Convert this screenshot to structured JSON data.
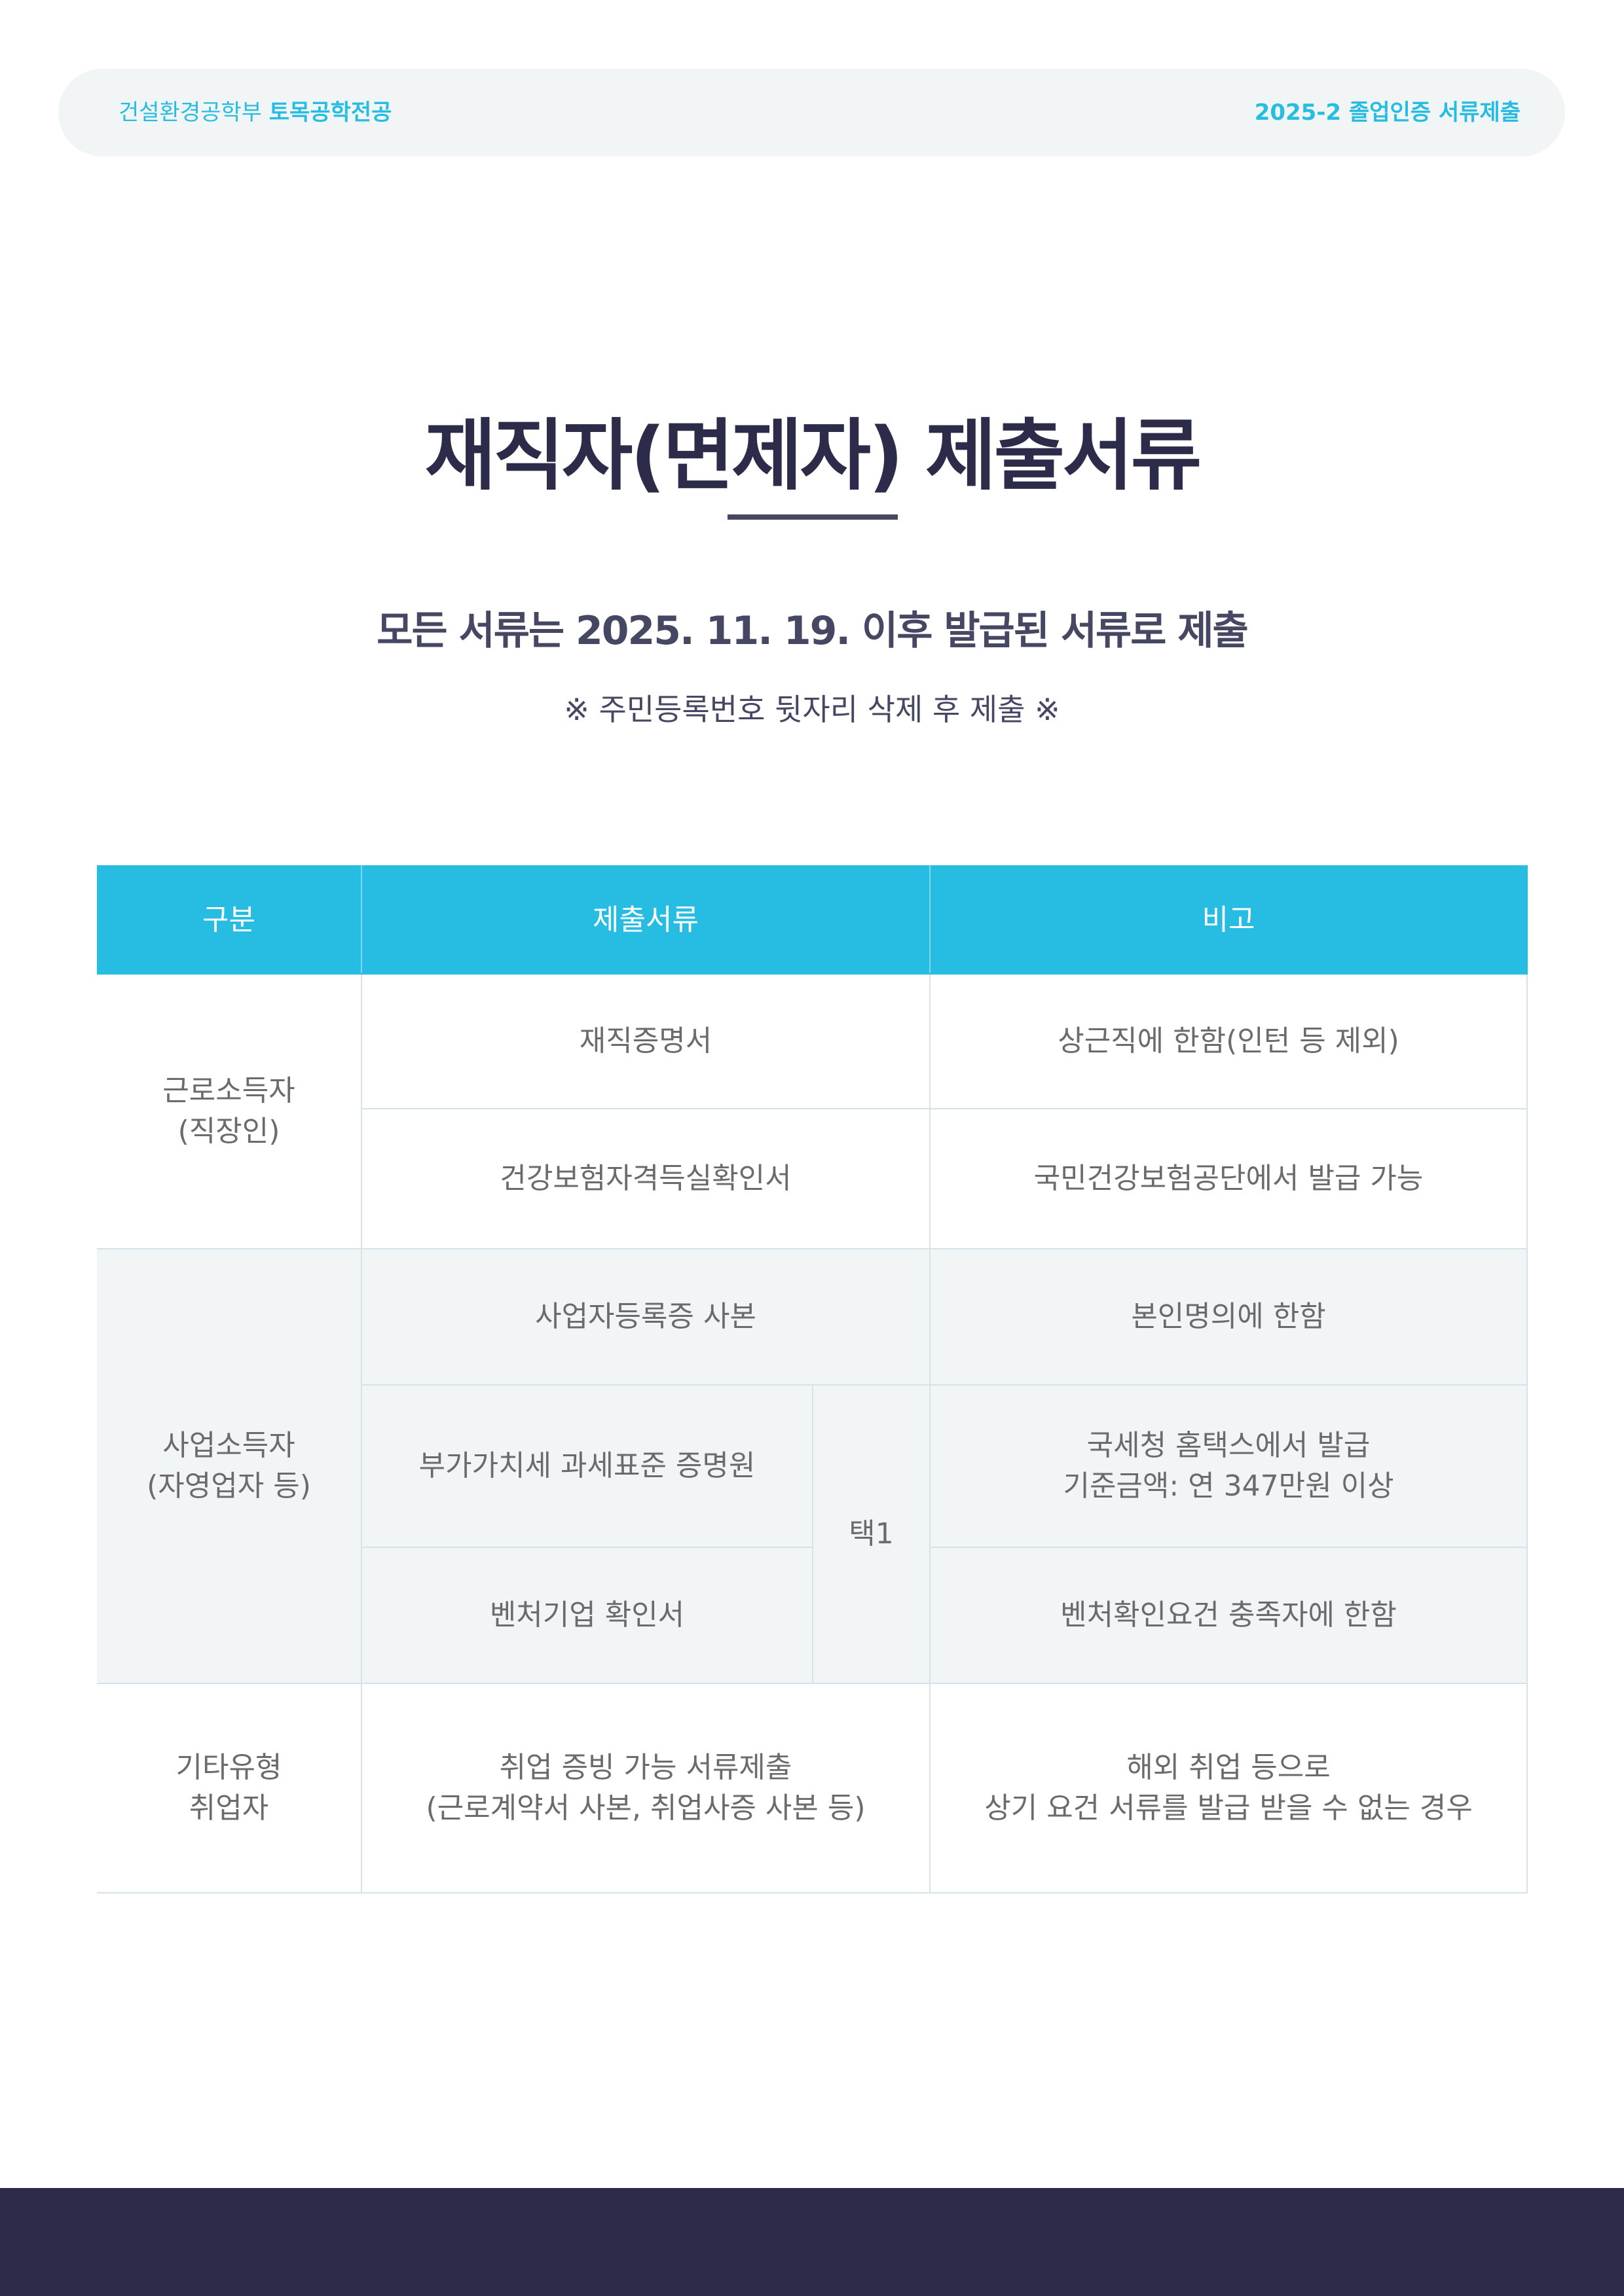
{
  "header": {
    "department": "건설환경공학부",
    "major": "토목공학전공",
    "right_label": "2025-2 졸업인증 서류제출"
  },
  "title": "재직자(면제자) 제출서류",
  "subtitle": "모든 서류는 2025. 11. 19. 이후 발급된 서류로 제출",
  "note": "※ 주민등록번호 뒷자리 삭제 후 제출 ※",
  "table": {
    "headers": [
      "구분",
      "제출서류",
      "비고"
    ],
    "groups": [
      {
        "category": "근로소득자\n(직장인)",
        "rows": [
          {
            "document": "재직증명서",
            "remark": "상근직에 한함(인턴 등 제외)"
          },
          {
            "document": "건강보험자격득실확인서",
            "remark": "국민건강보험공단에서 발급 가능"
          }
        ]
      },
      {
        "category": "사업소득자\n(자영업자 등)",
        "rows": [
          {
            "document": "사업자등록증 사본",
            "remark": "본인명의에 한함"
          },
          {
            "document": "부가가치세 과세표준 증명원",
            "remark": "국세청 홈택스에서 발급\n기준금액: 연 347만원 이상"
          },
          {
            "document": "벤처기업 확인서",
            "remark": "벤처확인요건 충족자에 한함"
          }
        ],
        "choice_label": "택1"
      },
      {
        "category": "기타유형\n취업자",
        "rows": [
          {
            "document": "취업 증빙 가능 서류제출\n(근로계약서 사본, 취업사증 사본 등)",
            "remark": "해외 취업 등으로\n상기 요건 서류를 발급 받을 수 없는 경우"
          }
        ]
      }
    ]
  },
  "colors": {
    "accent": "#27bde3",
    "dark": "#2c2c4a",
    "shaded_row": "#f1f5f6"
  }
}
